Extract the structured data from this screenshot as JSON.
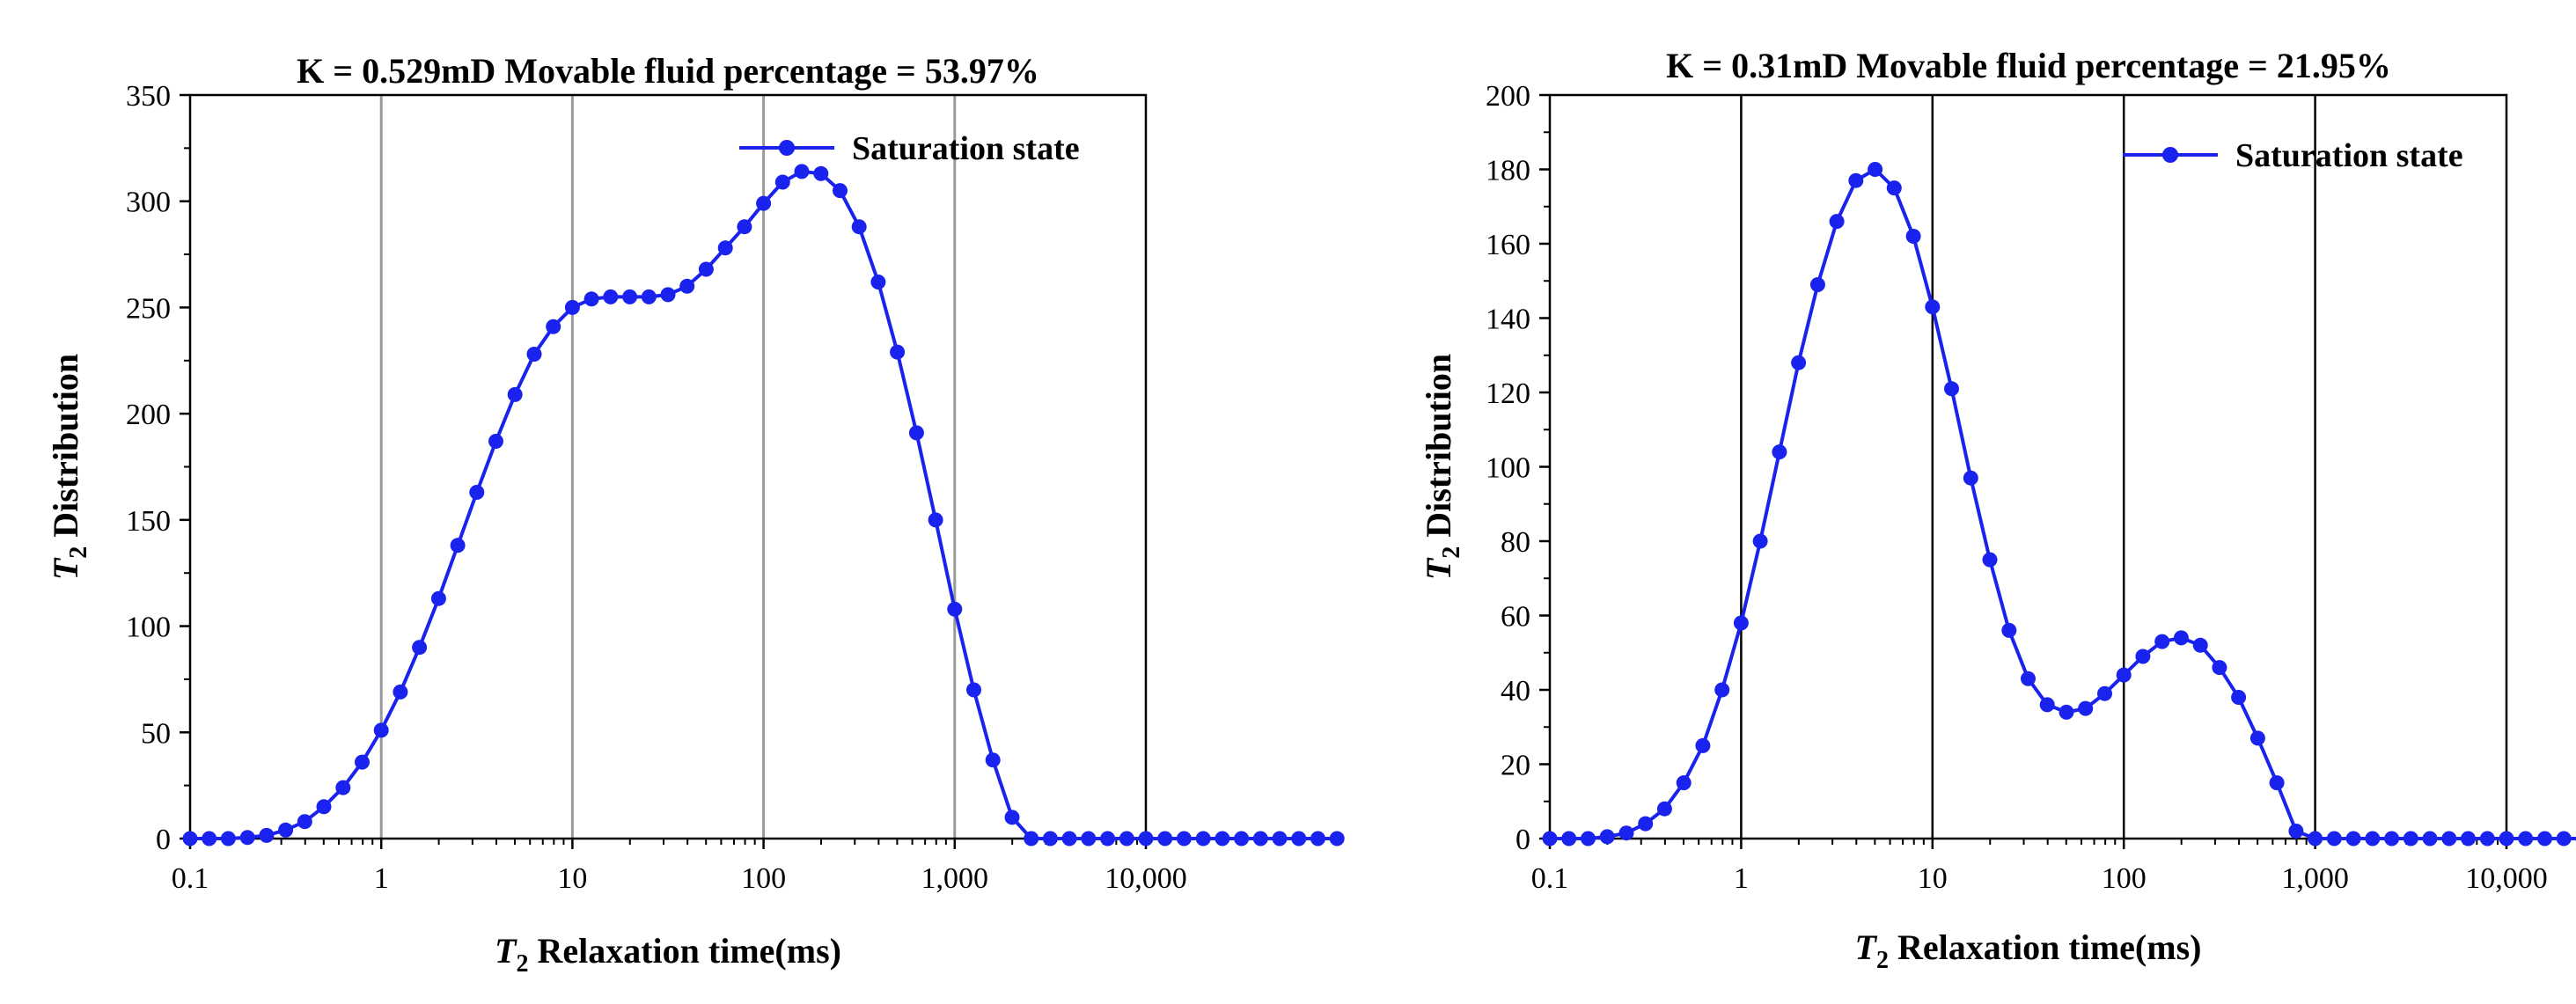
{
  "figure": {
    "panels": 2
  },
  "chart_data": [
    {
      "type": "line",
      "title": "K = 0.529mD  Movable fluid percentage = 53.97%",
      "xlabel_symbol": "T",
      "xlabel_subscript": "2",
      "xlabel_text": " Relaxation time(ms)",
      "ylabel_symbol": "T",
      "ylabel_subscript": "2",
      "ylabel_text": " Distribution",
      "xscale": "log",
      "xlim": [
        0.1,
        10000
      ],
      "ylim": [
        0,
        350
      ],
      "x_ticks": [
        0.1,
        1,
        10,
        100,
        1000,
        10000
      ],
      "x_tick_labels": [
        "0.1",
        "1",
        "10",
        "100",
        "1,000",
        "10,000"
      ],
      "y_ticks": [
        0,
        50,
        100,
        150,
        200,
        250,
        300,
        350
      ],
      "y_tick_labels": [
        "0",
        "50",
        "100",
        "150",
        "200",
        "250",
        "300",
        "350"
      ],
      "vertical_lines": [
        1,
        10,
        100,
        1000
      ],
      "vertical_line_color": "#9a9a9a",
      "legend_position": "top-right",
      "series": [
        {
          "name": "Saturation state",
          "color": "#1a22ee",
          "x_start": 0.1,
          "points_per_decade": 10,
          "values": [
            0,
            0,
            0,
            0.5,
            1.5,
            4,
            8,
            15,
            24,
            36,
            51,
            69,
            90,
            113,
            138,
            163,
            187,
            209,
            228,
            241,
            250,
            254,
            255,
            255,
            255,
            256,
            260,
            268,
            278,
            288,
            299,
            309,
            314,
            313,
            305,
            288,
            262,
            229,
            191,
            150,
            108,
            70,
            37,
            10,
            0,
            0,
            0,
            0,
            0,
            0,
            0,
            0,
            0,
            0,
            0,
            0,
            0,
            0,
            0,
            0,
            0
          ]
        }
      ]
    },
    {
      "type": "line",
      "title": "K = 0.31mD  Movable fluid percentage  =  21.95%",
      "xlabel_symbol": "T",
      "xlabel_subscript": "2",
      "xlabel_text": " Relaxation time(ms)",
      "ylabel_symbol": "T",
      "ylabel_subscript": "2",
      "ylabel_text": " Distribution",
      "xscale": "log",
      "xlim": [
        0.1,
        10000
      ],
      "ylim": [
        0,
        200
      ],
      "x_ticks": [
        0.1,
        1,
        10,
        100,
        1000,
        10000
      ],
      "x_tick_labels": [
        "0.1",
        "1",
        "10",
        "100",
        "1,000",
        "10,000"
      ],
      "y_ticks": [
        0,
        20,
        40,
        60,
        80,
        100,
        120,
        140,
        160,
        180,
        200
      ],
      "y_tick_labels": [
        "0",
        "20",
        "40",
        "60",
        "80",
        "100",
        "120",
        "140",
        "160",
        "180",
        "200"
      ],
      "vertical_lines": [
        1,
        10,
        100,
        1000
      ],
      "vertical_line_color": "#000000",
      "legend_position": "top-right",
      "series": [
        {
          "name": "Saturation state",
          "color": "#1a22ee",
          "x_start": 0.1,
          "points_per_decade": 10,
          "values": [
            0,
            0,
            0,
            0.5,
            1.5,
            4,
            8,
            15,
            25,
            40,
            58,
            80,
            104,
            128,
            149,
            166,
            177,
            180,
            175,
            162,
            143,
            121,
            97,
            75,
            56,
            43,
            36,
            34,
            35,
            39,
            44,
            49,
            53,
            54,
            52,
            46,
            38,
            27,
            15,
            2,
            0,
            0,
            0,
            0,
            0,
            0,
            0,
            0,
            0,
            0,
            0,
            0,
            0,
            0,
            0,
            0,
            0,
            0,
            0,
            0,
            0
          ]
        }
      ]
    }
  ]
}
